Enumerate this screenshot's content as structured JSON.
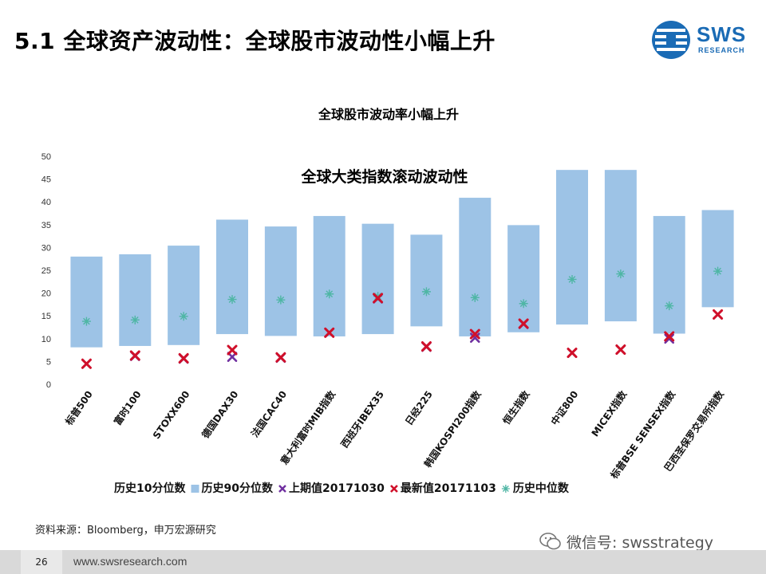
{
  "slide": {
    "title": "5.1 全球资产波动性：全球股市波动性小幅上升",
    "logo_text": "SWS",
    "logo_sub": "RESEARCH",
    "source": "资料来源：Bloomberg，申万宏源研究",
    "wechat": "微信号: swsstrategy",
    "page_number": "26",
    "footer_url": "www.swsresearch.com"
  },
  "colors": {
    "band": "#9dc3e6",
    "latest": "#d0102a",
    "previous": "#7030a0",
    "median": "#4fb6a5",
    "brand": "#1a6bb5"
  },
  "chart_data": {
    "type": "range-bar",
    "title": "全球股市波动率小幅上升",
    "subtitle": "全球大类指数滚动波动性",
    "ylim": [
      0,
      50
    ],
    "yticks": [
      0,
      5,
      10,
      15,
      20,
      25,
      30,
      35,
      40,
      45,
      50
    ],
    "categories": [
      "标普500",
      "富时100",
      "STOXX600",
      "德国DAX30",
      "法国CAC40",
      "意大利富时MIB指数",
      "西班牙IBEX35",
      "日经225",
      "韩国KOSPI200指数",
      "恒生指数",
      "中证800",
      "MICEX指数",
      "标普BSE SENSEX指数",
      "巴西圣保罗交易所指数"
    ],
    "legend": [
      "历史10分位数",
      "历史90分位数",
      "上期值20171030",
      "最新值20171103",
      "历史中位数"
    ],
    "series": [
      {
        "name": "历史10分位数",
        "values": [
          8.1,
          8.4,
          8.6,
          11.0,
          10.6,
          10.5,
          11.0,
          12.7,
          10.5,
          11.4,
          13.1,
          13.8,
          11.1,
          16.9
        ]
      },
      {
        "name": "历史90分位数",
        "values": [
          28.0,
          28.5,
          30.4,
          36.1,
          34.6,
          36.9,
          35.2,
          32.8,
          40.9,
          34.9,
          47.0,
          47.0,
          36.9,
          38.2
        ]
      },
      {
        "name": "上期值20171030",
        "values": [
          4.5,
          6.2,
          5.6,
          6.0,
          5.8,
          11.3,
          18.8,
          8.2,
          10.2,
          13.2,
          6.9,
          7.6,
          10.0,
          15.3
        ]
      },
      {
        "name": "最新值20171103",
        "values": [
          4.5,
          6.3,
          5.7,
          7.5,
          5.9,
          11.3,
          18.9,
          8.3,
          11.0,
          13.3,
          6.9,
          7.6,
          10.5,
          15.3
        ]
      },
      {
        "name": "历史中位数",
        "values": [
          13.8,
          14.1,
          14.9,
          18.6,
          18.5,
          19.8,
          19.3,
          20.3,
          19.0,
          17.7,
          23.0,
          24.2,
          17.2,
          24.8
        ]
      }
    ]
  }
}
